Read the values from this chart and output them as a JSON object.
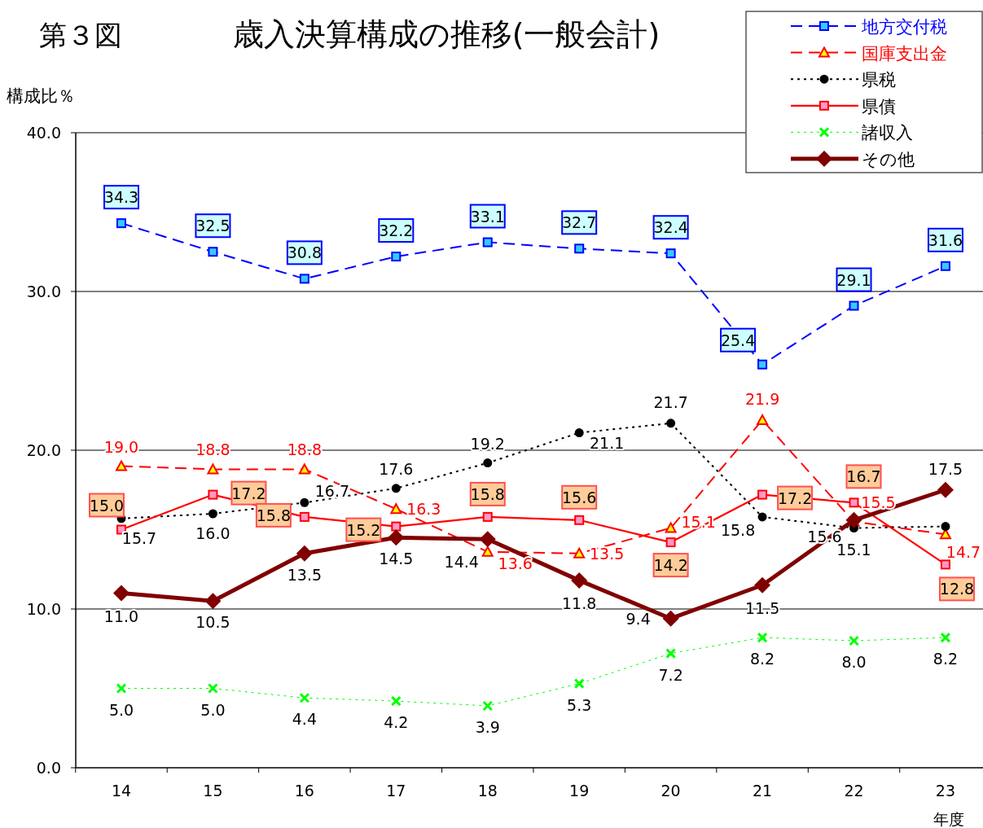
{
  "chart_data": {
    "type": "line",
    "title": "歳入決算構成の推移(一般会計)",
    "ylabel": "構成比％",
    "xlabel": "年度",
    "annotations": [
      "第３図"
    ],
    "categories": [
      "14",
      "15",
      "16",
      "17",
      "18",
      "19",
      "20",
      "21",
      "22",
      "23"
    ],
    "ylim": [
      0,
      40
    ],
    "yticks": [
      {
        "value": 0,
        "label": "0.0"
      },
      {
        "value": 10,
        "label": "10.0"
      },
      {
        "value": 20,
        "label": "20.0"
      },
      {
        "value": 30,
        "label": "30.0"
      },
      {
        "value": 40,
        "label": "40.0"
      }
    ],
    "grid": "y",
    "legend": "top right",
    "series": [
      {
        "name": "地方交付税",
        "color": "#0000ff",
        "marker": "square",
        "line_style": "dashed",
        "values": [
          34.3,
          32.5,
          30.8,
          32.2,
          33.1,
          32.7,
          32.4,
          25.4,
          29.1,
          31.6
        ],
        "value_labels": [
          "34.3",
          "32.5",
          "30.8",
          "32.2",
          "33.1",
          "32.7",
          "32.4",
          "25.4",
          "29.1",
          "31.6"
        ]
      },
      {
        "name": "国庫支出金",
        "color": "#ff0000",
        "marker": "triangle",
        "line_style": "dashed",
        "values": [
          19.0,
          18.8,
          18.8,
          16.3,
          13.6,
          13.5,
          15.1,
          21.9,
          15.5,
          14.7
        ],
        "value_labels": [
          "19.0",
          "18.8",
          "18.8",
          "16.3",
          "13.6",
          "13.5",
          "15.1",
          "21.9",
          "15.5",
          "14.7"
        ]
      },
      {
        "name": "県税",
        "color": "#000000",
        "marker": "circle",
        "line_style": "dotted",
        "values": [
          15.7,
          16.0,
          16.7,
          17.6,
          19.2,
          21.1,
          21.7,
          15.8,
          15.1,
          15.2
        ],
        "value_labels": [
          "15.7",
          "16.0",
          "16.7",
          "17.6",
          "19.2",
          "21.1",
          "21.7",
          "15.8",
          "15.1",
          null
        ]
      },
      {
        "name": "県債",
        "color": "#ff0000",
        "marker": "square",
        "line_style": "solid",
        "values": [
          15.0,
          17.2,
          15.8,
          15.2,
          15.8,
          15.6,
          14.2,
          17.2,
          16.7,
          12.8
        ],
        "value_labels": [
          "15.0",
          "17.2",
          "15.8",
          "15.2",
          "15.8",
          "15.6",
          "14.2",
          "17.2",
          "16.7",
          "12.8"
        ]
      },
      {
        "name": "諸収入",
        "color": "#00ff00",
        "marker": "cross",
        "line_style": "dotted",
        "values": [
          5.0,
          5.0,
          4.4,
          4.2,
          3.9,
          5.3,
          7.2,
          8.2,
          8.0,
          8.2
        ],
        "value_labels": [
          "5.0",
          "5.0",
          "4.4",
          "4.2",
          "3.9",
          "5.3",
          "7.2",
          "8.2",
          "8.0",
          "8.2"
        ]
      },
      {
        "name": "その他",
        "color": "#800000",
        "marker": "diamond",
        "line_style": "solid",
        "values": [
          11.0,
          10.5,
          13.5,
          14.5,
          14.4,
          11.8,
          9.4,
          11.5,
          15.6,
          17.5
        ],
        "value_labels": [
          "11.0",
          "10.5",
          "13.5",
          "14.5",
          "14.4",
          "11.8",
          "9.4",
          "11.5",
          "15.6",
          "17.5"
        ]
      }
    ]
  }
}
